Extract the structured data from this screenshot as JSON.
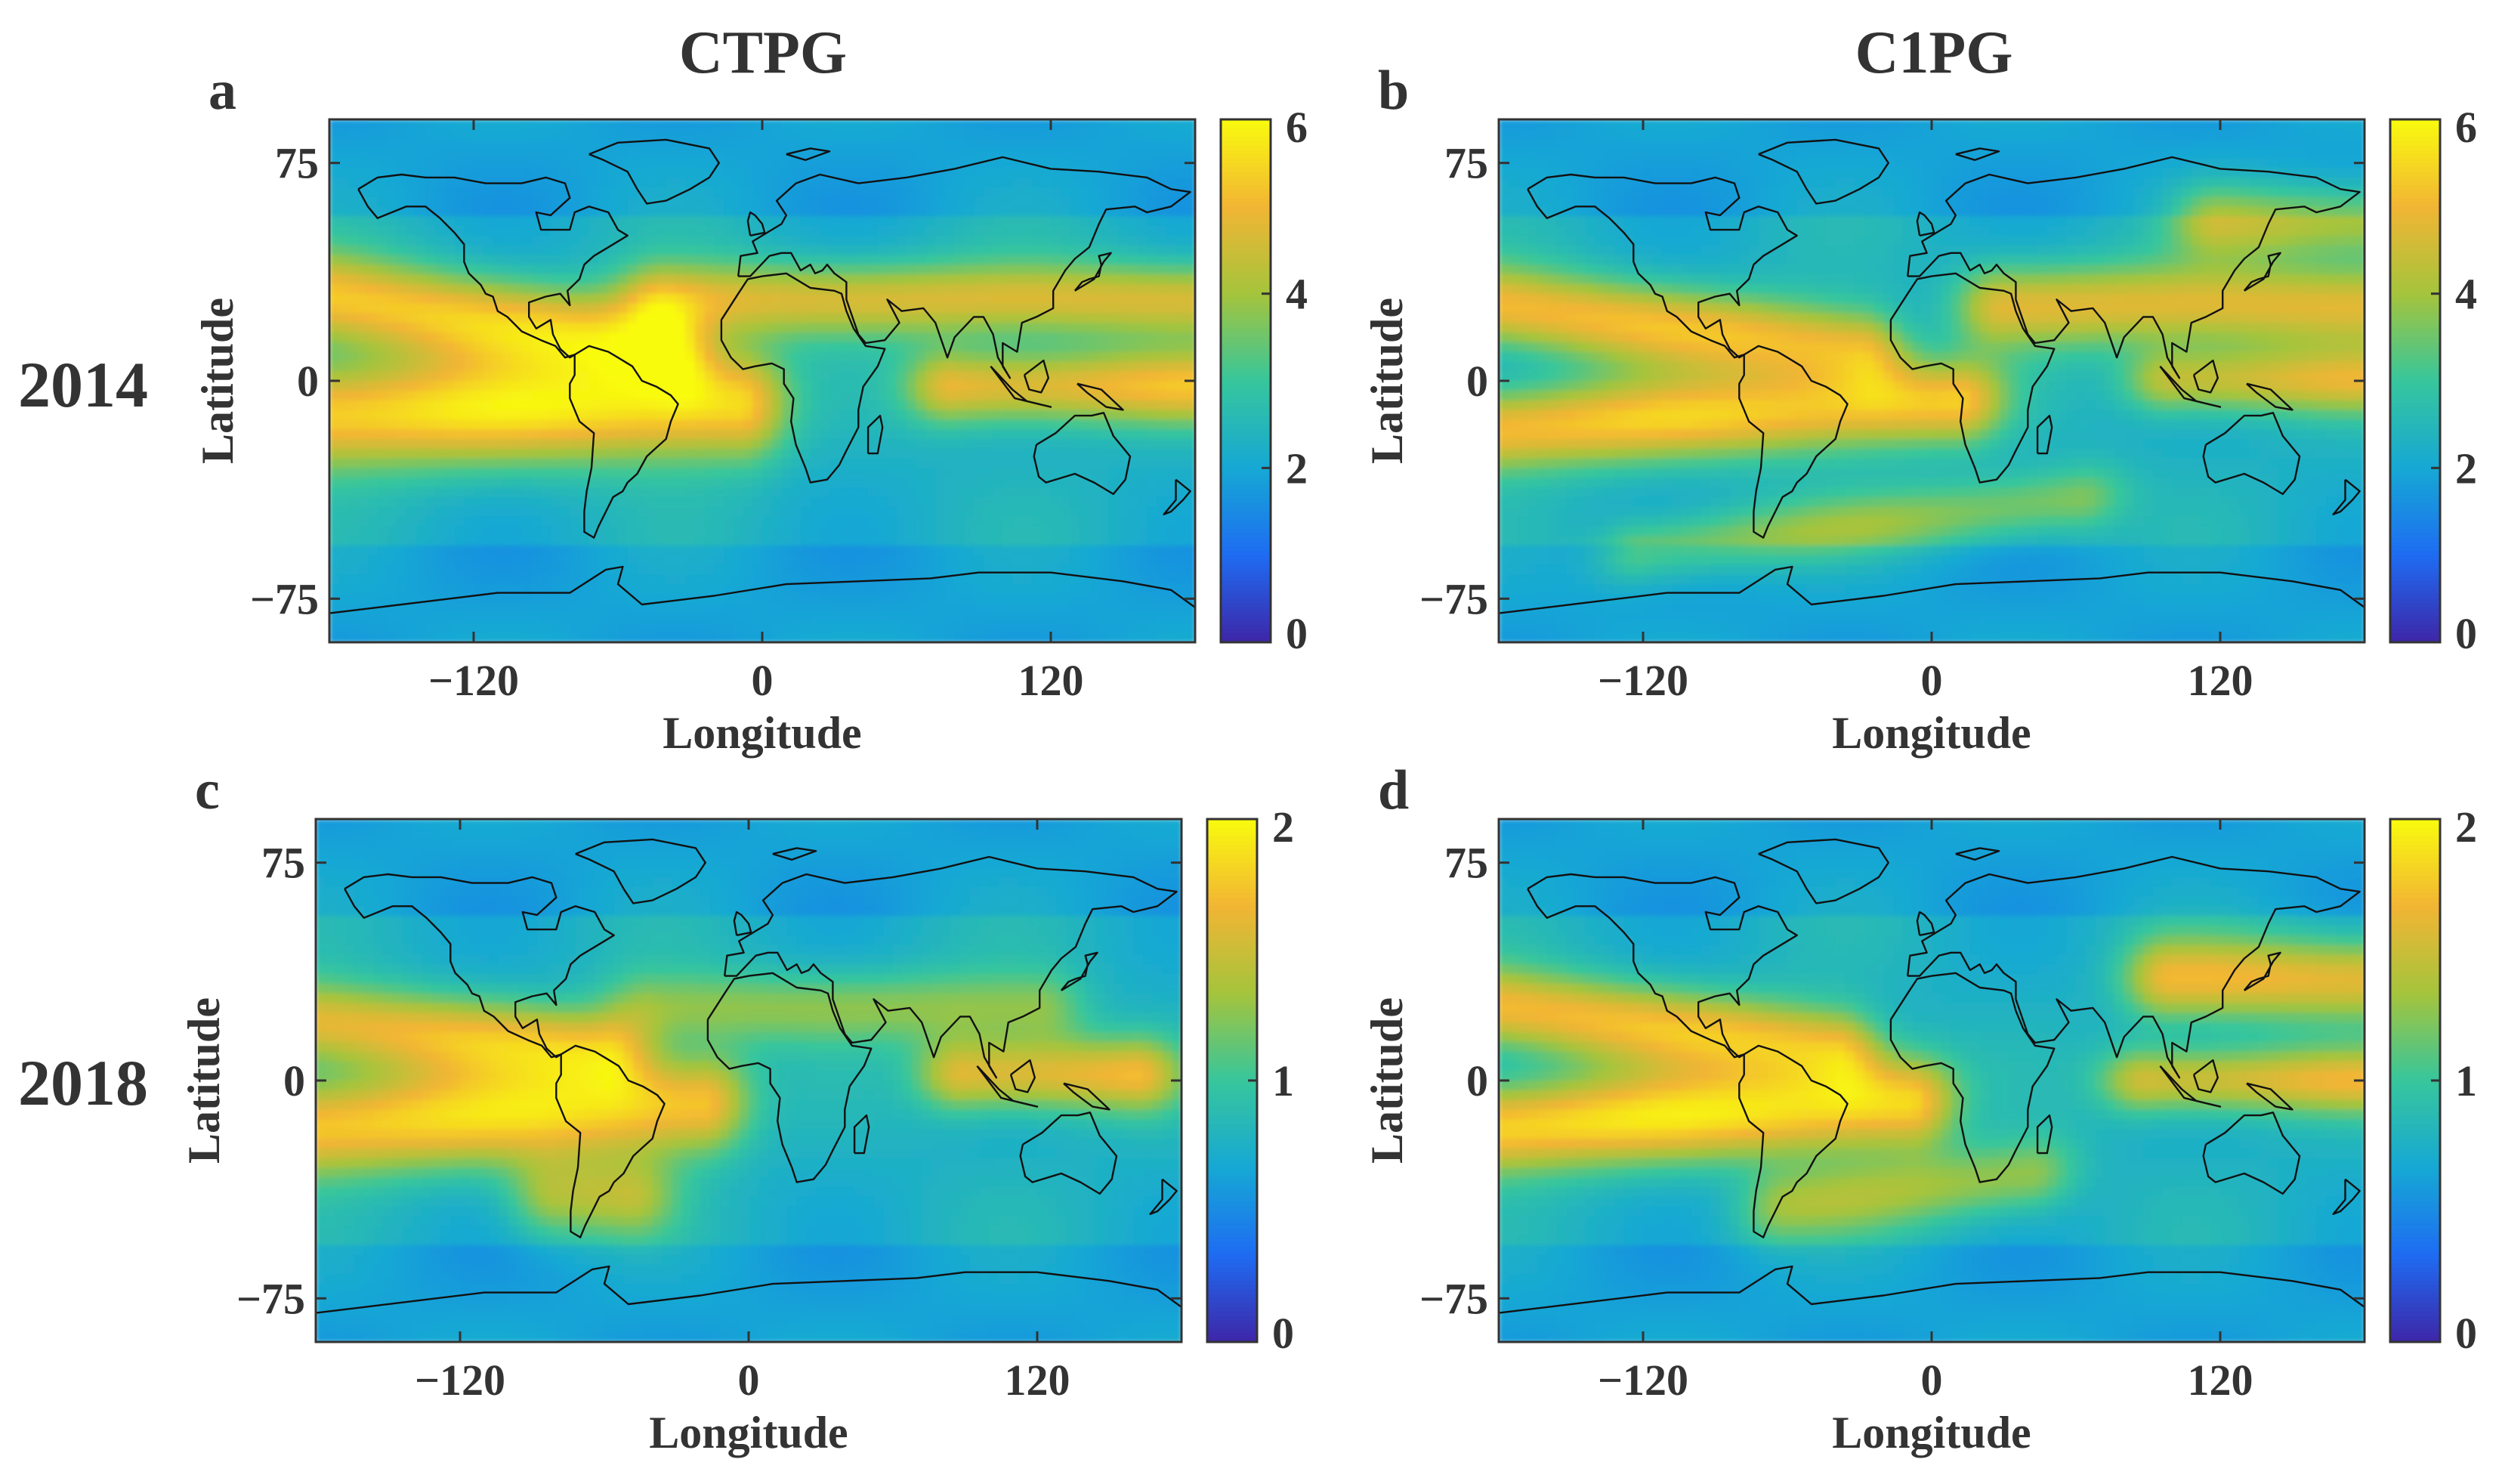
{
  "figure": {
    "column_titles": [
      "CTPG",
      "C1PG"
    ],
    "row_titles": [
      "2014",
      "2018"
    ]
  },
  "panels": [
    {
      "id": "a",
      "letter": "a",
      "row": 0,
      "col": 0,
      "colorbar": {
        "min": 0,
        "max": 6,
        "ticks": [
          "6",
          "4",
          "2",
          "0"
        ]
      },
      "bands": [
        {
          "lat": 20,
          "lon_start": -180,
          "lon_end": -40,
          "sigma": 11,
          "amp": 0.9,
          "tilt": -0.12
        },
        {
          "lat": -10,
          "lon_start": -180,
          "lon_end": -10,
          "sigma": 13,
          "amp": 1.0,
          "tilt": 0.02
        },
        {
          "lat": 28,
          "lon_start": -40,
          "lon_end": 180,
          "sigma": 9,
          "amp": 0.72,
          "tilt": 0
        },
        {
          "lat": -2,
          "lon_start": 80,
          "lon_end": 180,
          "sigma": 9,
          "amp": 0.82,
          "tilt": 0
        }
      ]
    },
    {
      "id": "b",
      "letter": "b",
      "row": 0,
      "col": 1,
      "colorbar": {
        "min": 0,
        "max": 6,
        "ticks": [
          "6",
          "4",
          "2",
          "0"
        ]
      },
      "bands": [
        {
          "lat": 18,
          "lon_start": -180,
          "lon_end": -30,
          "sigma": 10,
          "amp": 0.85,
          "tilt": -0.1
        },
        {
          "lat": -12,
          "lon_start": -180,
          "lon_end": 10,
          "sigma": 10,
          "amp": 0.9,
          "tilt": 0.05
        },
        {
          "lat": 26,
          "lon_start": 30,
          "lon_end": 180,
          "sigma": 10,
          "amp": 0.75,
          "tilt": 0
        },
        {
          "lat": 55,
          "lon_start": 120,
          "lon_end": 180,
          "sigma": 9,
          "amp": 0.6,
          "tilt": 0
        },
        {
          "lat": -50,
          "lon_start": -120,
          "lon_end": 60,
          "sigma": 8,
          "amp": 0.45,
          "tilt": 0.1
        },
        {
          "lat": 0,
          "lon_start": 100,
          "lon_end": 180,
          "sigma": 8,
          "amp": 0.7,
          "tilt": 0
        }
      ]
    },
    {
      "id": "c",
      "letter": "c",
      "row": 1,
      "col": 0,
      "colorbar": {
        "min": 0,
        "max": 2,
        "ticks": [
          "2",
          "1",
          "0"
        ]
      },
      "bands": [
        {
          "lat": 15,
          "lon_start": -180,
          "lon_end": -60,
          "sigma": 10,
          "amp": 0.8,
          "tilt": -0.08
        },
        {
          "lat": -12,
          "lon_start": -180,
          "lon_end": -20,
          "sigma": 12,
          "amp": 0.95,
          "tilt": 0.05
        },
        {
          "lat": 2,
          "lon_start": 90,
          "lon_end": 160,
          "sigma": 9,
          "amp": 0.8,
          "tilt": 0
        },
        {
          "lat": 25,
          "lon_start": -40,
          "lon_end": 120,
          "sigma": 9,
          "amp": 0.45,
          "tilt": 0
        },
        {
          "lat": -40,
          "lon_start": -80,
          "lon_end": -50,
          "sigma": 10,
          "amp": 0.55,
          "tilt": 0
        }
      ]
    },
    {
      "id": "d",
      "letter": "d",
      "row": 1,
      "col": 1,
      "colorbar": {
        "min": 0,
        "max": 2,
        "ticks": [
          "2",
          "1",
          "0"
        ]
      },
      "bands": [
        {
          "lat": 18,
          "lon_start": -180,
          "lon_end": -40,
          "sigma": 10,
          "amp": 0.85,
          "tilt": -0.1
        },
        {
          "lat": -12,
          "lon_start": -180,
          "lon_end": -10,
          "sigma": 11,
          "amp": 1.0,
          "tilt": 0.05
        },
        {
          "lat": 35,
          "lon_start": 100,
          "lon_end": 180,
          "sigma": 10,
          "amp": 0.8,
          "tilt": 0
        },
        {
          "lat": 0,
          "lon_start": 90,
          "lon_end": 180,
          "sigma": 8,
          "amp": 0.75,
          "tilt": 0
        },
        {
          "lat": -38,
          "lon_start": -60,
          "lon_end": 40,
          "sigma": 9,
          "amp": 0.5,
          "tilt": 0.1
        }
      ]
    }
  ],
  "axes": {
    "x_label": "Longitude",
    "y_label": "Latitude",
    "x_range": [
      -180,
      180
    ],
    "y_range": [
      -90,
      90
    ],
    "x_ticks": [
      {
        "value": -120,
        "label": "−120"
      },
      {
        "value": 0,
        "label": "0"
      },
      {
        "value": 120,
        "label": "120"
      }
    ],
    "y_ticks": [
      {
        "value": 75,
        "label": "75"
      },
      {
        "value": 0,
        "label": "0"
      },
      {
        "value": -75,
        "label": "−75"
      }
    ]
  },
  "colors": {
    "colormap": [
      "#3e26a8",
      "#1e6cf2",
      "#16a8d4",
      "#37c69c",
      "#a5c43c",
      "#f2b534",
      "#f9fb0e"
    ],
    "background_field": 0.38,
    "coast": "#111111",
    "frame": "#333333"
  }
}
